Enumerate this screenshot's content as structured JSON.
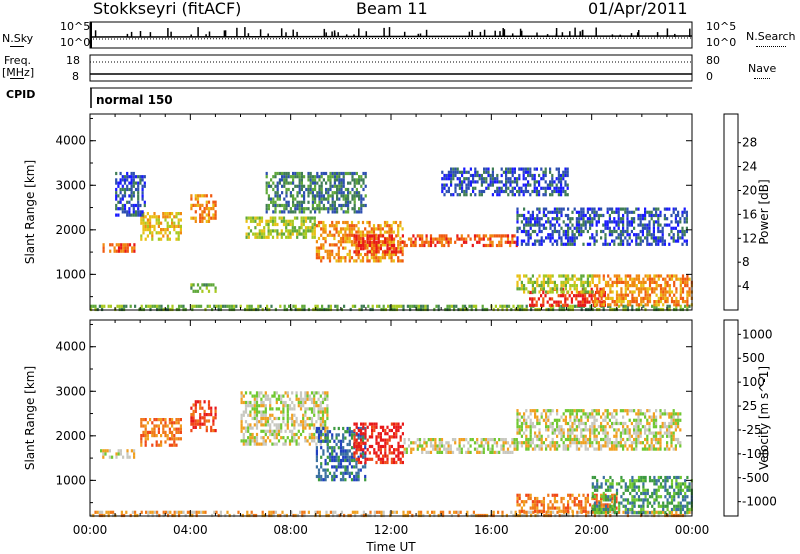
{
  "header": {
    "station": "Stokkseyri (fitACF)",
    "beam": "Beam 11",
    "date": "01/Apr/2011"
  },
  "side_labels": {
    "nsky": "N.Sky",
    "freq": "Freq.",
    "mhz": "[MHz]",
    "cpid": "CPID",
    "nsearch": "N.Search",
    "nave": "Nave"
  },
  "nsky_ticks": {
    "top": "10^5",
    "bottom": "10^0"
  },
  "nsearch_ticks": {
    "top": "10^5",
    "bottom": "10^0"
  },
  "freq_ticks": {
    "top": "18",
    "bottom": "8"
  },
  "nave_ticks": {
    "top": "80",
    "bottom": "0"
  },
  "cpid_label": "normal 150",
  "chart_data": [
    {
      "type": "heatmap",
      "name": "power",
      "ylabel": "Slant Range [km]",
      "yticks": [
        "1000",
        "2000",
        "3000",
        "4000"
      ],
      "ylim": [
        200,
        4600
      ],
      "xlim": [
        0,
        24
      ],
      "colorbar": {
        "label": "Power [dB]",
        "ticks": [
          "4",
          "8",
          "12",
          "16",
          "20",
          "24",
          "28"
        ],
        "colors": [
          "#1a1aff",
          "#2d4fb0",
          "#3f7d55",
          "#5fa83a",
          "#a8c920",
          "#e8c016",
          "#f08a10",
          "#f05a10",
          "#e81818"
        ]
      },
      "regions": [
        {
          "t0": 0.0,
          "t1": 24.0,
          "r0": 200,
          "r1": 320,
          "level": 3
        },
        {
          "t0": 0.5,
          "t1": 1.8,
          "r0": 1500,
          "r1": 1700,
          "level": 7
        },
        {
          "t0": 2.0,
          "t1": 3.6,
          "r0": 1800,
          "r1": 2400,
          "level": 5
        },
        {
          "t0": 1.0,
          "t1": 2.2,
          "r0": 2300,
          "r1": 3300,
          "level": 1
        },
        {
          "t0": 4.0,
          "t1": 5.0,
          "r0": 2200,
          "r1": 2800,
          "level": 6
        },
        {
          "t0": 4.0,
          "t1": 5.0,
          "r0": 650,
          "r1": 800,
          "level": 3
        },
        {
          "t0": 6.2,
          "t1": 9.0,
          "r0": 1800,
          "r1": 2300,
          "level": 4
        },
        {
          "t0": 7.0,
          "t1": 11.0,
          "r0": 2400,
          "r1": 3300,
          "level": 2
        },
        {
          "t0": 9.0,
          "t1": 12.5,
          "r0": 1300,
          "r1": 2200,
          "level": 6
        },
        {
          "t0": 10.5,
          "t1": 12.5,
          "r0": 1500,
          "r1": 1900,
          "level": 8
        },
        {
          "t0": 12.5,
          "t1": 17.0,
          "r0": 1650,
          "r1": 1900,
          "level": 7
        },
        {
          "t0": 14.0,
          "t1": 19.0,
          "r0": 2800,
          "r1": 3400,
          "level": 1
        },
        {
          "t0": 17.0,
          "t1": 23.8,
          "r0": 1700,
          "r1": 2500,
          "level": 1
        },
        {
          "t0": 17.5,
          "t1": 20.5,
          "r0": 300,
          "r1": 700,
          "level": 8
        },
        {
          "t0": 20.0,
          "t1": 24.0,
          "r0": 300,
          "r1": 1000,
          "level": 6
        },
        {
          "t0": 17.0,
          "t1": 20.0,
          "r0": 600,
          "r1": 1000,
          "level": 4
        }
      ]
    },
    {
      "type": "heatmap",
      "name": "velocity",
      "ylabel": "Slant Range [km]",
      "yticks": [
        "1000",
        "2000",
        "3000",
        "4000"
      ],
      "ylim": [
        200,
        4600
      ],
      "xlim": [
        0,
        24
      ],
      "xticks": [
        "00:00",
        "04:00",
        "08:00",
        "12:00",
        "16:00",
        "20:00",
        "00:00"
      ],
      "xlabel": "Time UT",
      "colorbar": {
        "label": "Velocity [m s^-1]",
        "ticks": [
          "1000",
          "500",
          "100",
          "25",
          "-25",
          "-100",
          "-500",
          "-1000"
        ],
        "colors": [
          "#2040c0",
          "#3a70a0",
          "#3c9a40",
          "#70c830",
          "#c8c8c0",
          "#f0a020",
          "#f07818",
          "#f04818",
          "#e81818"
        ]
      },
      "regions": [
        {
          "t0": 0.0,
          "t1": 24.0,
          "r0": 200,
          "r1": 320,
          "level": 5
        },
        {
          "t0": 0.4,
          "t1": 1.8,
          "r0": 1500,
          "r1": 1700,
          "level": 4
        },
        {
          "t0": 2.0,
          "t1": 3.6,
          "r0": 1800,
          "r1": 2400,
          "level": 6
        },
        {
          "t0": 4.0,
          "t1": 5.0,
          "r0": 2100,
          "r1": 2800,
          "level": 7
        },
        {
          "t0": 6.0,
          "t1": 9.5,
          "r0": 1800,
          "r1": 3000,
          "level": 4
        },
        {
          "t0": 9.0,
          "t1": 11.0,
          "r0": 1000,
          "r1": 2200,
          "level": 1
        },
        {
          "t0": 10.5,
          "t1": 12.5,
          "r0": 1400,
          "r1": 2300,
          "level": 8
        },
        {
          "t0": 12.5,
          "t1": 17.0,
          "r0": 1600,
          "r1": 1950,
          "level": 4
        },
        {
          "t0": 17.0,
          "t1": 23.5,
          "r0": 1700,
          "r1": 2600,
          "level": 4
        },
        {
          "t0": 17.0,
          "t1": 21.0,
          "r0": 300,
          "r1": 700,
          "level": 6
        },
        {
          "t0": 20.0,
          "t1": 24.0,
          "r0": 300,
          "r1": 1100,
          "level": 2
        }
      ]
    }
  ]
}
